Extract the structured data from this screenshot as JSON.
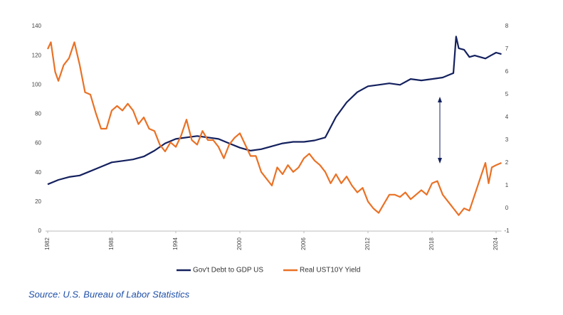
{
  "chart_data": {
    "type": "line",
    "source": "Source: U.S. Bureau of Labor Statistics",
    "xlim": [
      1982,
      2024.5
    ],
    "xticks": [
      1982,
      1988,
      1994,
      2000,
      2006,
      2012,
      2018,
      2024
    ],
    "ylim": [
      0,
      140
    ],
    "yticks": [
      0,
      20,
      40,
      60,
      80,
      100,
      120,
      140
    ],
    "y2lim": [
      -1,
      8
    ],
    "y2ticks": [
      -1,
      0,
      1,
      2,
      3,
      4,
      5,
      6,
      7,
      8
    ],
    "series": [
      {
        "name": "Gov't Debt to GDP US",
        "color": "#14215e",
        "x": [
          1982,
          1983,
          1984,
          1985,
          1986,
          1987,
          1988,
          1989,
          1990,
          1991,
          1992,
          1993,
          1994,
          1995,
          1996,
          1997,
          1998,
          1999,
          2000,
          2001,
          2002,
          2003,
          2004,
          2005,
          2006,
          2007,
          2008,
          2009,
          2010,
          2011,
          2012,
          2013,
          2014,
          2015,
          2016,
          2017,
          2018,
          2019,
          2020,
          2020.25,
          2020.5,
          2021,
          2021.5,
          2022,
          2023,
          2023.5,
          2024,
          2024.5
        ],
        "values": [
          32,
          35,
          37,
          38,
          41,
          44,
          47,
          48,
          49,
          51,
          55,
          60,
          63,
          64,
          65,
          64,
          63,
          60,
          57,
          55,
          56,
          58,
          60,
          61,
          61,
          62,
          64,
          78,
          88,
          95,
          99,
          100,
          101,
          100,
          104,
          103,
          104,
          105,
          108,
          133,
          125,
          124,
          119,
          120,
          118,
          120,
          122,
          121
        ]
      },
      {
        "name": "Real UST10Y Yield",
        "color": "#ea7125",
        "axis": "y2",
        "x": [
          1982,
          1982.3,
          1982.7,
          1983,
          1983.5,
          1984,
          1984.5,
          1985,
          1985.5,
          1986,
          1986.5,
          1987,
          1987.5,
          1988,
          1988.5,
          1989,
          1989.5,
          1990,
          1990.5,
          1991,
          1991.5,
          1992,
          1992.5,
          1993,
          1993.5,
          1994,
          1994.5,
          1995,
          1995.5,
          1996,
          1996.5,
          1997,
          1997.5,
          1998,
          1998.5,
          1999,
          1999.5,
          2000,
          2000.5,
          2001,
          2001.5,
          2002,
          2002.5,
          2003,
          2003.5,
          2004,
          2004.5,
          2005,
          2005.5,
          2006,
          2006.5,
          2007,
          2007.5,
          2008,
          2008.5,
          2009,
          2009.5,
          2010,
          2010.5,
          2011,
          2011.5,
          2012,
          2012.5,
          2013,
          2013.5,
          2014,
          2014.5,
          2015,
          2015.5,
          2016,
          2016.5,
          2017,
          2017.5,
          2018,
          2018.5,
          2019,
          2019.5,
          2020,
          2020.5,
          2021,
          2021.5,
          2022,
          2022.5,
          2023,
          2023.3,
          2023.6,
          2024,
          2024.5
        ],
        "values": [
          7.0,
          7.3,
          6.0,
          5.6,
          6.3,
          6.6,
          7.3,
          6.3,
          5.1,
          5.0,
          4.2,
          3.5,
          3.5,
          4.3,
          4.5,
          4.3,
          4.6,
          4.3,
          3.7,
          4.0,
          3.5,
          3.4,
          2.8,
          2.5,
          2.9,
          2.7,
          3.2,
          3.9,
          3.0,
          2.8,
          3.4,
          3.0,
          3.0,
          2.7,
          2.2,
          2.8,
          3.1,
          3.3,
          2.8,
          2.3,
          2.3,
          1.6,
          1.3,
          1.0,
          1.8,
          1.5,
          1.9,
          1.6,
          1.8,
          2.2,
          2.4,
          2.1,
          1.9,
          1.6,
          1.1,
          1.5,
          1.1,
          1.4,
          1.0,
          0.7,
          0.9,
          0.3,
          0.0,
          -0.2,
          0.2,
          0.6,
          0.6,
          0.5,
          0.7,
          0.4,
          0.6,
          0.8,
          0.6,
          1.1,
          1.2,
          0.6,
          0.3,
          0.0,
          -0.3,
          0.0,
          -0.1,
          0.6,
          1.3,
          2.0,
          1.1,
          1.8,
          1.9,
          2.0
        ]
      }
    ]
  }
}
